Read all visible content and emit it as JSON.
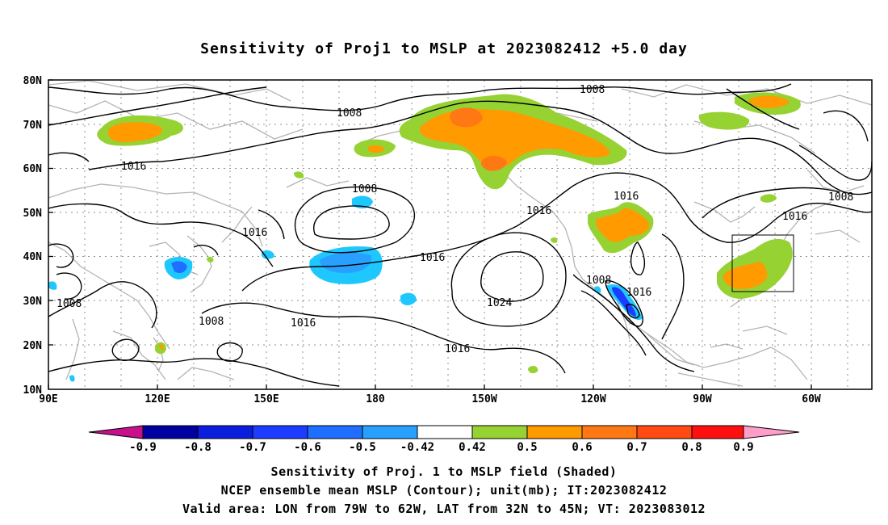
{
  "title": "Sensitivity of Proj1 to MSLP at 2023082412 +5.0 day",
  "lat_labels": [
    "80N",
    "70N",
    "60N",
    "50N",
    "40N",
    "30N",
    "20N",
    "10N"
  ],
  "lon_labels": [
    "90E",
    "120E",
    "150E",
    "180",
    "150W",
    "120W",
    "90W",
    "60W"
  ],
  "contour_labels": [
    {
      "text": "1008"
    },
    {
      "text": "1008"
    },
    {
      "text": "1016"
    },
    {
      "text": "1008"
    },
    {
      "text": "1016"
    },
    {
      "text": "1016"
    },
    {
      "text": "1016"
    },
    {
      "text": "1016"
    },
    {
      "text": "1016"
    },
    {
      "text": "1008"
    },
    {
      "text": "1008"
    },
    {
      "text": "1016"
    },
    {
      "text": "1024"
    },
    {
      "text": "1016"
    },
    {
      "text": "1008"
    },
    {
      "text": "1016"
    },
    {
      "text": "1008"
    }
  ],
  "colorbar": {
    "labels": [
      "-0.9",
      "-0.8",
      "-0.7",
      "-0.6",
      "-0.5",
      "-0.42",
      "0.42",
      "0.5",
      "0.6",
      "0.7",
      "0.8",
      "0.9"
    ],
    "colors": {
      "neg_tip": "#c8108c",
      "n09": "#0000a0",
      "n08": "#0a1edc",
      "n07": "#1e3cff",
      "n06": "#1e6eff",
      "n05": "#28a0ff",
      "n042": "#1ec8ff",
      "white": "#ffffff",
      "p042": "#96d232",
      "p05": "#ff9a00",
      "p06": "#ff7814",
      "p07": "#ff4a14",
      "p08": "#ff1010",
      "pos_tip": "#ff9ec8"
    }
  },
  "valid_box_label": "Valid area",
  "captions": [
    "Sensitivity of Proj. 1 to MSLP field (Shaded)",
    "NCEP ensemble mean MSLP (Contour); unit(mb); IT:2023082412",
    "Valid area: LON from 79W to 62W, LAT from 32N to 45N; VT: 2023083012"
  ]
}
